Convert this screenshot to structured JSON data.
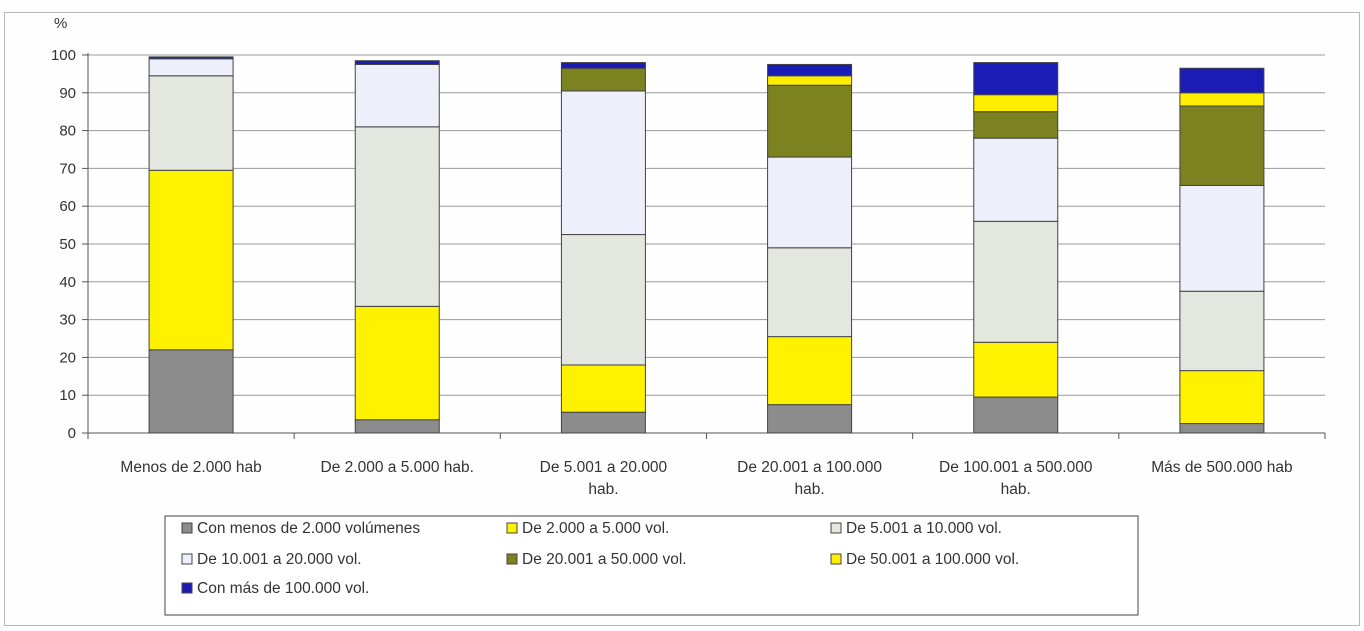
{
  "chart_data": {
    "type": "bar",
    "stacked": true,
    "ylabel": "%",
    "ylim": [
      0,
      100
    ],
    "yticks": [
      0,
      10,
      20,
      30,
      40,
      50,
      60,
      70,
      80,
      90,
      100
    ],
    "grid": true,
    "legend_position": "bottom",
    "categories": [
      [
        "Menos de 2.000 hab"
      ],
      [
        "De 2.000 a 5.000  hab."
      ],
      [
        "De 5.001  a 20.000",
        "hab."
      ],
      [
        "De 20.001 a 100.000",
        "hab."
      ],
      [
        "De 100.001 a 500.000",
        "hab."
      ],
      [
        "Más de 500.000 hab"
      ]
    ],
    "series": [
      {
        "name": "Con menos de 2.000  volúmenes",
        "color": "#8c8c8c",
        "values": [
          22,
          3.5,
          5.5,
          7.5,
          9.5,
          2.5
        ]
      },
      {
        "name": "De 2.000 a 5.000  vol.",
        "color": "#fff200",
        "values": [
          47.5,
          30,
          12.5,
          18,
          14.5,
          14
        ]
      },
      {
        "name": "De 5.001  a 10.000 vol.",
        "color": "#e4e6e0",
        "values": [
          25,
          47.5,
          34.5,
          23.5,
          32,
          21
        ]
      },
      {
        "name": "De 10.001 a 20.000  vol.",
        "color": "#edf0fa",
        "values": [
          4.5,
          16.5,
          38,
          24,
          22,
          28
        ]
      },
      {
        "name": "De 20.001 a 50.000 vol.",
        "color": "#7c8220",
        "values": [
          0,
          0,
          6,
          19,
          7,
          21
        ]
      },
      {
        "name": "De 50.001 a 100.000 vol.",
        "color": "#ffee00",
        "values": [
          0,
          0,
          0,
          2.5,
          4.5,
          3.5
        ]
      },
      {
        "name": "Con más    de 100.000 vol.",
        "color": "#1b1bb5",
        "values": [
          0.5,
          1,
          1.5,
          3,
          8.5,
          6.5
        ]
      }
    ]
  }
}
